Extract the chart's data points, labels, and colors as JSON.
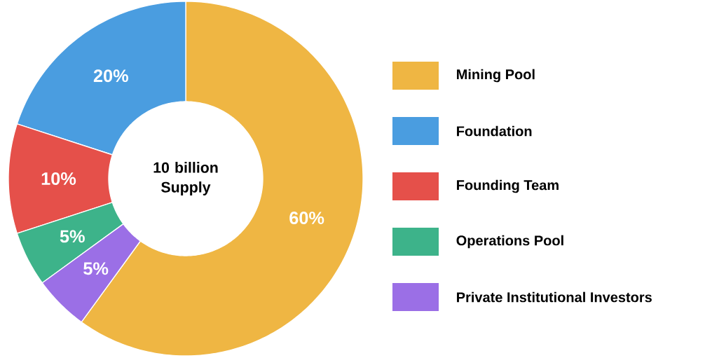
{
  "chart_data": {
    "type": "donut",
    "categories": [
      "Mining Pool",
      "Foundation",
      "Founding Team",
      "Operations Pool",
      "Private Institutional Investors"
    ],
    "values": [
      60,
      20,
      10,
      5,
      5
    ],
    "value_labels": [
      "60%",
      "20%",
      "10%",
      "5%",
      "5%"
    ],
    "colors": [
      "#efb643",
      "#4a9de0",
      "#e5504a",
      "#3db38a",
      "#9b6fe6"
    ],
    "annotations": [
      "10 billion Supply"
    ],
    "legend": "right"
  }
}
